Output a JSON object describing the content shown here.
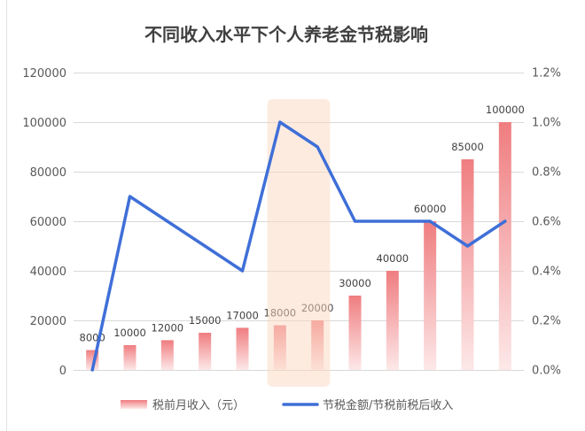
{
  "chart_data": {
    "type": "bar",
    "title": "不同收入水平下个人养老金节税影响",
    "ylim": [
      0,
      120000
    ],
    "y2lim": [
      0,
      1.2
    ],
    "y_ticks": [
      "0",
      "20000",
      "40000",
      "60000",
      "80000",
      "100000",
      "120000"
    ],
    "y2_ticks": [
      "0.0%",
      "0.2%",
      "0.4%",
      "0.6%",
      "0.8%",
      "1.0%",
      "1.2%"
    ],
    "grid": true,
    "legend_position": "bottom",
    "series": [
      {
        "name": "税前月收入（元）",
        "type": "bar",
        "axis": "left",
        "values": [
          8000,
          10000,
          12000,
          15000,
          17000,
          18000,
          20000,
          30000,
          40000,
          60000,
          85000,
          100000
        ],
        "data_labels": true,
        "color_top": "#ef7d80",
        "color_bottom": "#fde8e8"
      },
      {
        "name": "节税金额/节税前税后收入",
        "type": "line",
        "axis": "right",
        "values": [
          0.0,
          0.7,
          0.6,
          0.5,
          0.4,
          1.0,
          0.9,
          0.6,
          0.6,
          0.6,
          0.5,
          0.6
        ],
        "color": "#3f6fd8"
      }
    ],
    "highlight": {
      "from_index": 5,
      "to_index": 6,
      "color": "#fbd8c2"
    }
  }
}
